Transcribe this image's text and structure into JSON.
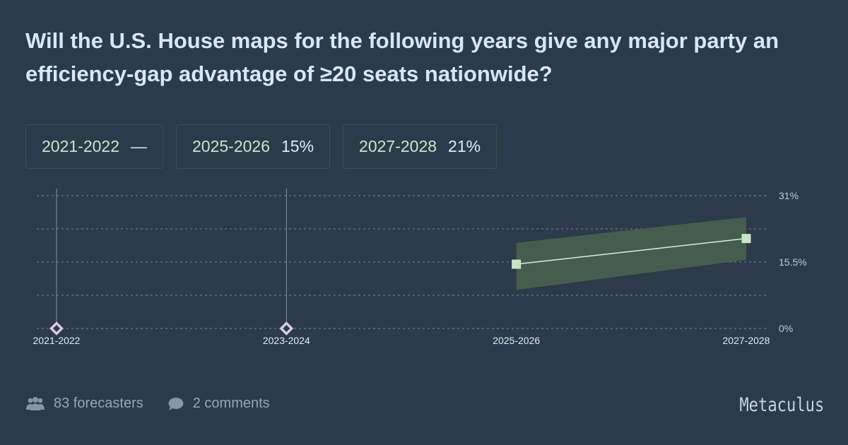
{
  "title": "Will the U.S. House maps for the following years give any major party an efficiency-gap advantage of ≥20 seats nationwide?",
  "chips": [
    {
      "label": "2021-2022",
      "value": "—"
    },
    {
      "label": "2025-2026",
      "value": "15%"
    },
    {
      "label": "2027-2028",
      "value": "21%"
    }
  ],
  "chart_data": {
    "type": "line",
    "categories": [
      "2021-2022",
      "2023-2024",
      "2025-2026",
      "2027-2028"
    ],
    "y_tick_labels": [
      "31%",
      "15.5%",
      "0%"
    ],
    "y_ticks": [
      31,
      15.5,
      0
    ],
    "ylim": [
      0,
      31
    ],
    "gridlines": [
      0,
      7.75,
      15.5,
      23.25,
      31
    ],
    "series": [
      {
        "name": "forecast",
        "values": [
          null,
          null,
          15,
          21
        ]
      },
      {
        "name": "lower",
        "values": [
          null,
          null,
          9,
          16
        ]
      },
      {
        "name": "upper",
        "values": [
          null,
          null,
          20,
          26
        ]
      }
    ],
    "resolved_markers": [
      "2021-2022",
      "2023-2024"
    ]
  },
  "colors": {
    "line": "#d7eedd",
    "band": "#44604f",
    "point": "#c6e6cc",
    "marker": "#d6c9ea",
    "grid": "#7d8894",
    "axis_text": "#c2cad3"
  },
  "footer": {
    "forecasters": "83 forecasters",
    "comments": "2 comments"
  },
  "brand": "Metaculus"
}
